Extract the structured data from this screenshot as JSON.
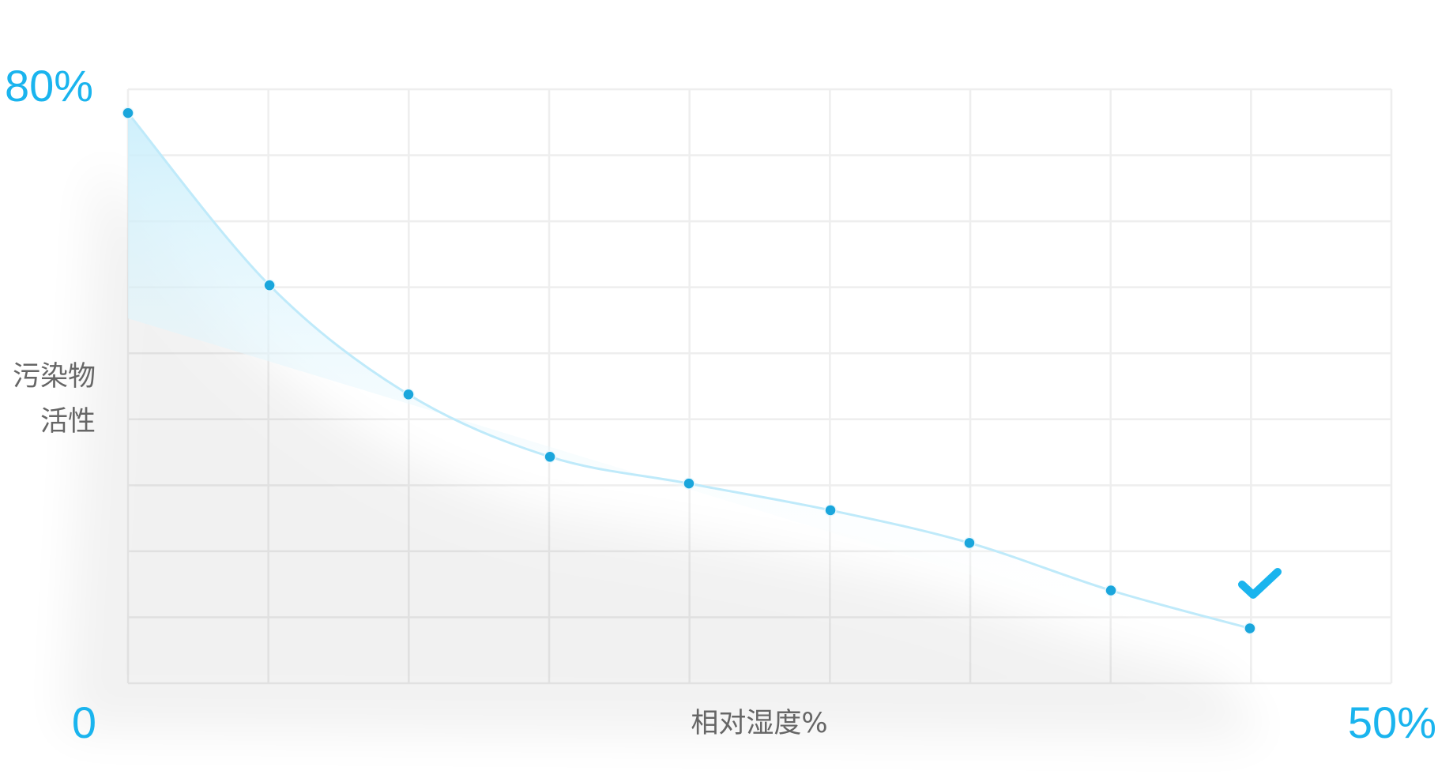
{
  "chart_data": {
    "type": "line",
    "xlabel": "相对湿度%",
    "ylabel": [
      "污染物",
      "活性"
    ],
    "x": [
      0,
      5.6,
      11.1,
      16.7,
      22.2,
      27.8,
      33.3,
      38.9,
      44.4
    ],
    "series": [
      {
        "color": "#1aa6dc",
        "values": [
          76.8,
          53.6,
          38.9,
          30.5,
          26.9,
          23.3,
          18.9,
          12.5,
          7.4
        ]
      }
    ],
    "xlim": [
      0,
      50
    ],
    "xticks": [
      0,
      {
        "value": 50,
        "label": "50%"
      }
    ],
    "ylim": [
      0,
      80
    ],
    "yticks": [
      {
        "value": 80,
        "label": "80%"
      }
    ],
    "grid": true
  }
}
